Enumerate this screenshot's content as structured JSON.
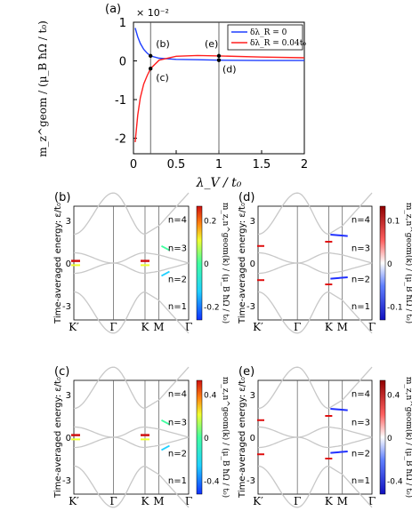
{
  "top": {
    "panel_label": "(a)",
    "exponent_label": "× 10⁻²",
    "ylabel": "m_z^geom / (μ_B ħΩ / t₀)",
    "xlabel": "λ_V / t₀",
    "xticks": [
      "0",
      "0.5",
      "1",
      "1.5",
      "2"
    ],
    "yticks": [
      "1",
      "0",
      "-1",
      "-2"
    ],
    "legend": [
      {
        "label": "δλ_R = 0",
        "color": "#1f3fff"
      },
      {
        "label": "δλ_R = 0.04t₀",
        "color": "#ff1f1f"
      }
    ],
    "markers": [
      "(b)",
      "(c)",
      "(e)",
      "(d)"
    ]
  },
  "chart_data": [
    {
      "type": "line",
      "panel": "(a)",
      "xlabel": "λ_V / t₀",
      "ylabel": "m_z^geom / (μ_B ħΩ / t₀)",
      "xlim": [
        0,
        2
      ],
      "ylim": [
        -2.4,
        1.0
      ],
      "y_scale_note": "× 10⁻²",
      "vertical_lines_x": [
        0.2,
        1.0
      ],
      "series": [
        {
          "name": "δλ_R = 0",
          "x": [
            0.02,
            0.05,
            0.08,
            0.12,
            0.16,
            0.2,
            0.3,
            0.5,
            0.75,
            1.0,
            1.5,
            2.0
          ],
          "y": [
            0.85,
            0.62,
            0.45,
            0.3,
            0.2,
            0.13,
            0.07,
            0.04,
            0.03,
            0.02,
            0.01,
            0.01
          ]
        },
        {
          "name": "δλ_R = 0.04t₀",
          "x": [
            0.02,
            0.05,
            0.08,
            0.12,
            0.16,
            0.2,
            0.3,
            0.5,
            0.75,
            1.0,
            1.5,
            2.0
          ],
          "y": [
            -2.1,
            -1.4,
            -0.95,
            -0.6,
            -0.38,
            -0.2,
            0.02,
            0.12,
            0.14,
            0.13,
            0.1,
            0.08
          ]
        }
      ],
      "points": [
        {
          "label": "(b)",
          "x": 0.2,
          "y": 0.13
        },
        {
          "label": "(c)",
          "x": 0.2,
          "y": -0.2
        },
        {
          "label": "(e)",
          "x": 1.0,
          "y": 0.13
        },
        {
          "label": "(d)",
          "x": 1.0,
          "y": 0.02
        }
      ]
    }
  ],
  "bands": {
    "ylabel": "Time-averaged energy: ε/t₀",
    "yticks": [
      "3",
      "0",
      "-3"
    ],
    "xticks": [
      "K′",
      "Γ",
      "K",
      "M",
      "Γ"
    ],
    "band_labels": [
      "n=4",
      "n=3",
      "n=2",
      "n=1"
    ],
    "panels": [
      {
        "id": "b",
        "label": "(b)",
        "cbar_ticks": [
          "0.2",
          "0",
          "-0.2"
        ],
        "cmap": "jet",
        "colorbar_label": "m_z,n^geom(k) / (μ_B ħΩ / t₀)"
      },
      {
        "id": "d",
        "label": "(d)",
        "cbar_ticks": [
          "0.1",
          "0",
          "-0.1"
        ],
        "cmap": "bwr",
        "colorbar_label": "m_z,n^geom(k) / (μ_B ħΩ / t₀)"
      },
      {
        "id": "c",
        "label": "(c)",
        "cbar_ticks": [
          "0.4",
          "0",
          "-0.4"
        ],
        "cmap": "jet",
        "colorbar_label": "m_z,n^geom(k) / (μ_B ħΩ / t₀)"
      },
      {
        "id": "e",
        "label": "(e)",
        "cbar_ticks": [
          "0.4",
          "0",
          "-0.4"
        ],
        "cmap": "bwr",
        "colorbar_label": "m_z,n^geom(k) / (μ_B ħΩ / t₀)"
      }
    ]
  }
}
